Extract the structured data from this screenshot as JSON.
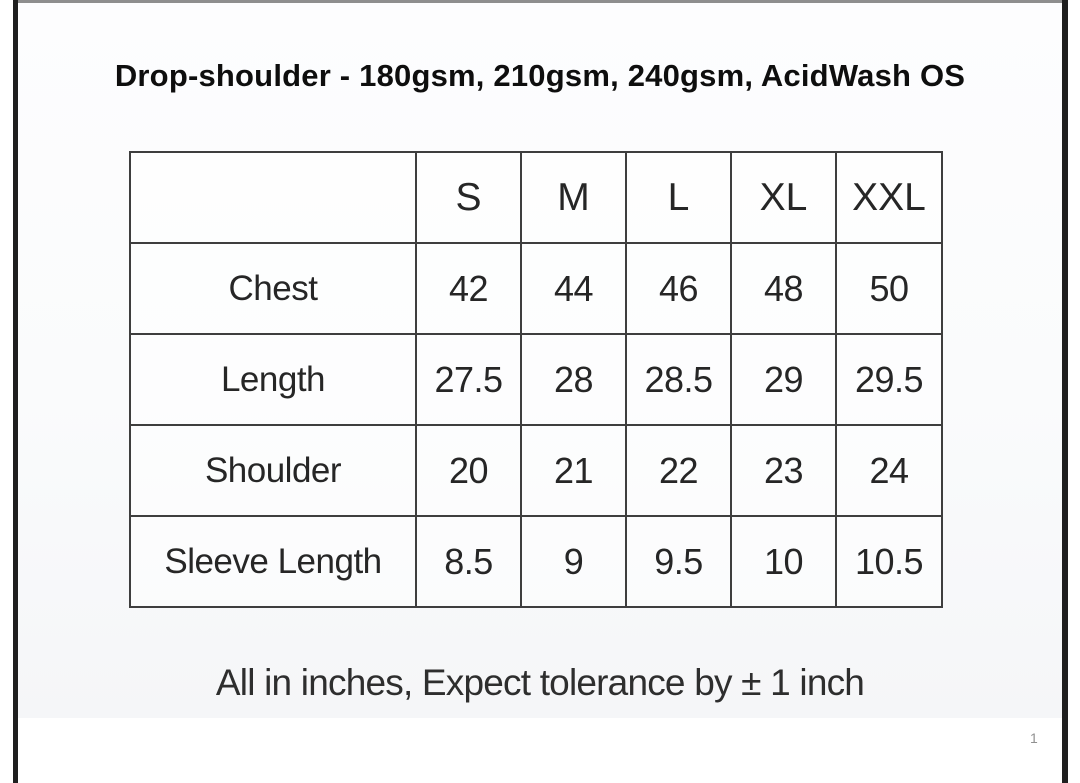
{
  "page": {
    "title": "Drop-shoulder - 180gsm, 210gsm, 240gsm, AcidWash OS",
    "footer_note": "All in inches, Expect tolerance by ± 1 inch",
    "page_number": "1"
  },
  "size_chart": {
    "header": [
      "",
      "S",
      "M",
      "L",
      "XL",
      "XXL"
    ],
    "rows": [
      {
        "label": "Chest",
        "values": [
          "42",
          "44",
          "46",
          "48",
          "50"
        ]
      },
      {
        "label": "Length",
        "values": [
          "27.5",
          "28",
          "28.5",
          "29",
          "29.5"
        ]
      },
      {
        "label": "Shoulder",
        "values": [
          "20",
          "21",
          "22",
          "23",
          "24"
        ]
      },
      {
        "label": "Sleeve Length",
        "values": [
          "8.5",
          "9",
          "9.5",
          "10",
          "10.5"
        ]
      }
    ]
  },
  "colors": {
    "table_border": "#3e3e3e",
    "frame_bar": "#1f1f1f",
    "frame_top_rule": "#8e8e8e",
    "text": "#262626",
    "page_number": "#909090"
  }
}
